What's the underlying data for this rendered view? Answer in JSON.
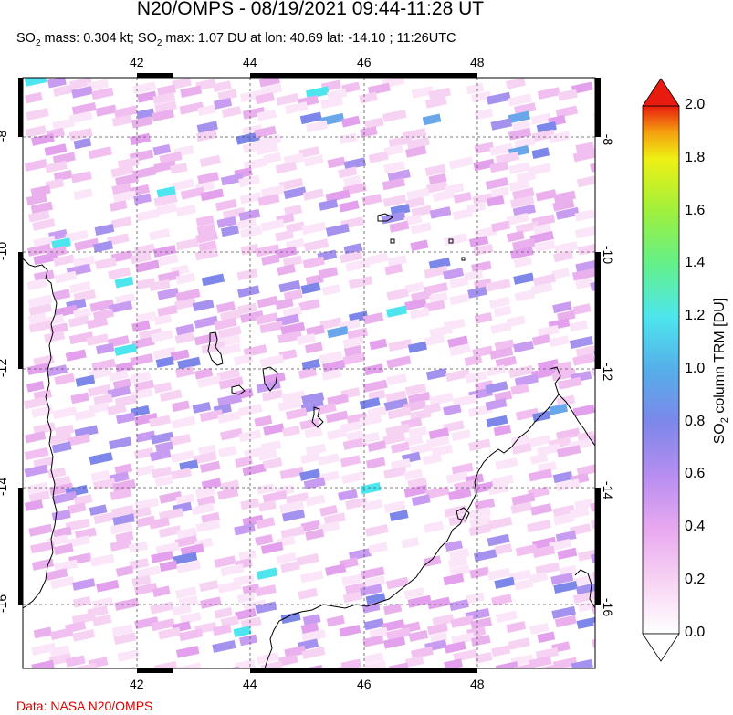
{
  "title": "N20/OMPS - 08/19/2021 09:44-11:28 UT",
  "subtitle": {
    "prefix1": "SO",
    "sub1": "2",
    "mid1": " mass: 0.304 kt; SO",
    "sub2": "2",
    "rest": " max: 1.07 DU at lon: 40.69 lat: -14.10 ; 11:26UTC"
  },
  "credit": "Data: NASA N20/OMPS",
  "map": {
    "lon_ticks": [
      "42",
      "44",
      "46",
      "48"
    ],
    "lat_ticks": [
      "-8",
      "-10",
      "-12",
      "-14",
      "-16"
    ],
    "lon_range": [
      40.0,
      50.0
    ],
    "lat_range": [
      -17.2,
      -7.0
    ],
    "gridlines": true
  },
  "colorbar": {
    "title_prefix": "SO",
    "title_sub": "2",
    "title_rest": " column TRM [DU]",
    "ticks": [
      "2.0",
      "1.8",
      "1.6",
      "1.4",
      "1.2",
      "1.0",
      "0.8",
      "0.6",
      "0.4",
      "0.2",
      "0.0"
    ],
    "range": [
      0.0,
      2.0
    ],
    "colors": [
      "#ffffff",
      "#f7d3f3",
      "#e8a8f0",
      "#b68ef0",
      "#7d87ea",
      "#55aee8",
      "#4de6ee",
      "#63f08a",
      "#9ff03d",
      "#eef014",
      "#f5b30f",
      "#f26414",
      "#e01c0e"
    ]
  }
}
